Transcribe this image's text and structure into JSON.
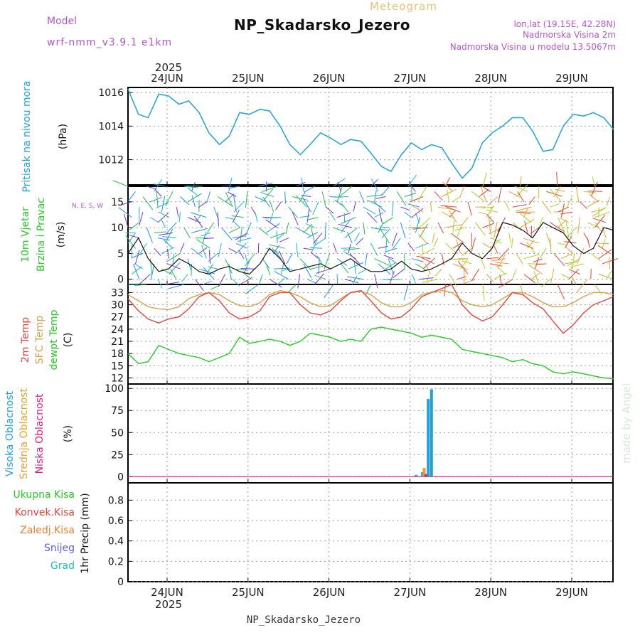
{
  "header": {
    "title": "NP_Skadarsko_Jezero",
    "subtitle": "Meteogram",
    "model_label": "Model",
    "model_name": "wrf-nmm_v3.9.1 e1km",
    "lonlat": "lon,lat (19.15E, 42.28N)",
    "elevation": "Nadmorska Visina 2m",
    "model_elevation": "Nadmorska Visina u modelu 13.5067m",
    "footer": "NP_Skadarsko_Jezero",
    "watermark": "made by Angel",
    "year": "2025"
  },
  "colors": {
    "pressure": "#1fa0e0",
    "temp2m": "#e8443a",
    "sfc_temp": "#d4a24a",
    "dewpoint": "#22cc22",
    "high_cloud": "#1fa0e0",
    "mid_cloud": "#e8a030",
    "low_cloud": "#e0207a",
    "title_purple": "#b455d6",
    "meteogram_orange": "#e8c070"
  },
  "chart_data": [
    {
      "type": "line",
      "panel": "pressure",
      "ylabel_lines": [
        "Pritisak na nivou mora",
        "(hPa)"
      ],
      "yticks": [
        "1016",
        "1014",
        "1012"
      ],
      "ylim": [
        1010.5,
        1016.3
      ],
      "x_day_ticks": [
        "24JUN",
        "25JUN",
        "26JUN",
        "27JUN",
        "28JUN",
        "29JUN"
      ],
      "series": [
        {
          "x": [
            0,
            0.13,
            0.25,
            0.38,
            0.5,
            0.63,
            0.75,
            0.88,
            1.0,
            1.13,
            1.25,
            1.38,
            1.5,
            1.63,
            1.75,
            1.88,
            2.0,
            2.13,
            2.25,
            2.38,
            2.5,
            2.63,
            2.75,
            2.88,
            3.0,
            3.13,
            3.25,
            3.38,
            3.5,
            3.63,
            3.75,
            3.88,
            4.0,
            4.13,
            4.25,
            4.38,
            4.5,
            4.63,
            4.75,
            4.88,
            5.0,
            5.13,
            5.25,
            5.38,
            5.5,
            5.63,
            5.75,
            5.88,
            6.0
          ],
          "y": [
            1016.2,
            1014.7,
            1014.5,
            1015.9,
            1015.8,
            1015.3,
            1015.5,
            1014.8,
            1013.6,
            1012.9,
            1013.4,
            1014.8,
            1014.7,
            1015.0,
            1014.9,
            1014.0,
            1012.9,
            1012.3,
            1012.9,
            1013.6,
            1013.3,
            1012.9,
            1013.2,
            1013.1,
            1012.4,
            1011.6,
            1011.3,
            1012.3,
            1013.0,
            1012.6,
            1012.9,
            1012.7,
            1011.8,
            1010.9,
            1011.5,
            1013.0,
            1013.6,
            1014.0,
            1014.5,
            1014.5,
            1013.7,
            1012.5,
            1012.6,
            1014.0,
            1014.7,
            1014.6,
            1014.8,
            1014.5,
            1013.8
          ]
        }
      ]
    },
    {
      "type": "line",
      "panel": "wind",
      "ylabel_lines": [
        "10m Vjetar",
        "Brzina i Pravac",
        "(m/s)"
      ],
      "yticks": [
        "15",
        "10",
        "5",
        "0"
      ],
      "ylim": [
        -1,
        18
      ],
      "compass": "N, E, S, W",
      "series": [
        {
          "name": "speed",
          "x": [
            0,
            0.13,
            0.25,
            0.38,
            0.5,
            0.63,
            0.75,
            0.88,
            1.0,
            1.13,
            1.25,
            1.38,
            1.5,
            1.63,
            1.75,
            1.88,
            2.0,
            2.13,
            2.25,
            2.38,
            2.5,
            2.63,
            2.75,
            2.88,
            3.0,
            3.13,
            3.25,
            3.38,
            3.5,
            3.63,
            3.75,
            3.88,
            4.0,
            4.13,
            4.25,
            4.38,
            4.5,
            4.63,
            4.75,
            4.88,
            5.0,
            5.13,
            5.25,
            5.38,
            5.5,
            5.63,
            5.75,
            5.88,
            6.0
          ],
          "y": [
            5,
            8,
            4,
            1.5,
            2,
            4,
            3,
            1.5,
            1,
            2,
            2.5,
            1.5,
            1,
            3,
            6,
            4,
            1.5,
            2,
            2.5,
            3,
            2,
            3,
            4,
            2.5,
            1.5,
            1.5,
            2,
            3.5,
            2,
            1.5,
            2,
            3,
            4,
            7,
            5,
            4,
            6,
            11,
            10.5,
            9.5,
            8,
            11,
            10,
            9,
            6.5,
            5,
            6,
            10,
            9.5
          ]
        }
      ]
    },
    {
      "type": "line",
      "panel": "temperature",
      "ylabel_lines": [
        "2m Temp",
        "SFC Temp",
        "dewpt Temp",
        "(C)"
      ],
      "yticks": [
        "33",
        "30",
        "27",
        "24",
        "21",
        "18",
        "15",
        "12"
      ],
      "ylim": [
        10.5,
        35
      ],
      "series": [
        {
          "name": "2m Temp",
          "x": [
            0,
            0.13,
            0.25,
            0.38,
            0.5,
            0.63,
            0.75,
            0.88,
            1.0,
            1.13,
            1.25,
            1.38,
            1.5,
            1.63,
            1.75,
            1.88,
            2.0,
            2.13,
            2.25,
            2.38,
            2.5,
            2.63,
            2.75,
            2.88,
            3.0,
            3.13,
            3.25,
            3.38,
            3.5,
            3.63,
            3.75,
            3.88,
            4.0,
            4.13,
            4.25,
            4.38,
            4.5,
            4.63,
            4.75,
            4.88,
            5.0,
            5.13,
            5.25,
            5.38,
            5.5,
            5.63,
            5.75,
            5.88,
            6.0
          ],
          "y": [
            31.5,
            28.5,
            26.5,
            25.5,
            26.5,
            27,
            29,
            32,
            33,
            31,
            28,
            26.5,
            27,
            28.5,
            32,
            33,
            33,
            30,
            28,
            27.5,
            28.5,
            31,
            33,
            33.5,
            31,
            28,
            26.5,
            27,
            29,
            32,
            33,
            34,
            35,
            30,
            27.5,
            26,
            27,
            30,
            33,
            32.5,
            30.5,
            29,
            26,
            23,
            25,
            28,
            30,
            31,
            32
          ]
        },
        {
          "name": "SFC Temp",
          "x": [
            0,
            0.13,
            0.25,
            0.38,
            0.5,
            0.63,
            0.75,
            0.88,
            1.0,
            1.13,
            1.25,
            1.38,
            1.5,
            1.63,
            1.75,
            1.88,
            2.0,
            2.13,
            2.25,
            2.38,
            2.5,
            2.63,
            2.75,
            2.88,
            3.0,
            3.13,
            3.25,
            3.38,
            3.5,
            3.63,
            3.75,
            3.88,
            4.0,
            4.13,
            4.25,
            4.38,
            4.5,
            4.63,
            4.75,
            4.88,
            5.0,
            5.13,
            5.25,
            5.38,
            5.5,
            5.63,
            5.75,
            5.88,
            6.0
          ],
          "y": [
            32.5,
            31,
            29.5,
            29,
            28.8,
            29.5,
            31.5,
            32.5,
            33,
            32.5,
            31,
            29.8,
            29.5,
            30.5,
            32.5,
            33.5,
            33,
            32,
            30.5,
            29.5,
            29.8,
            31.5,
            33,
            33.3,
            32.5,
            30.5,
            29.5,
            29.5,
            30.5,
            32.5,
            33,
            33.5,
            33,
            31,
            30,
            29.5,
            30,
            31.5,
            33,
            33,
            32,
            30.5,
            29.5,
            29.5,
            30.5,
            32,
            33,
            33,
            32.5
          ]
        },
        {
          "name": "dewpt Temp",
          "x": [
            0,
            0.13,
            0.25,
            0.38,
            0.5,
            0.63,
            0.75,
            0.88,
            1.0,
            1.13,
            1.25,
            1.38,
            1.5,
            1.63,
            1.75,
            1.88,
            2.0,
            2.13,
            2.25,
            2.38,
            2.5,
            2.63,
            2.75,
            2.88,
            3.0,
            3.13,
            3.25,
            3.38,
            3.5,
            3.63,
            3.75,
            3.88,
            4.0,
            4.13,
            4.25,
            4.38,
            4.5,
            4.63,
            4.75,
            4.88,
            5.0,
            5.13,
            5.25,
            5.38,
            5.5,
            5.63,
            5.75,
            5.88,
            6.0
          ],
          "y": [
            18,
            15.5,
            16,
            20,
            19,
            18,
            17.5,
            17,
            16,
            17,
            18,
            22,
            20.5,
            21,
            21.5,
            21,
            20,
            21,
            23,
            22.5,
            22,
            21,
            21.5,
            21,
            24,
            24.5,
            24,
            23.5,
            23,
            22,
            22.5,
            22,
            21.5,
            19,
            18.5,
            18,
            17.5,
            17,
            16,
            16.5,
            15.5,
            15,
            13.5,
            13,
            13.5,
            13,
            12.5,
            12,
            11.8
          ]
        }
      ]
    },
    {
      "type": "bar",
      "panel": "clouds",
      "ylabel_lines": [
        "Visoka Oblacnost",
        "Srednja Oblacnost",
        "Niska Oblacnost",
        "(%)"
      ],
      "yticks": [
        "100",
        "75",
        "50",
        "25",
        "0"
      ],
      "ylim": [
        -7,
        105
      ],
      "series": [
        {
          "name": "Visoka Oblacnost",
          "x": [
            3.56,
            3.64,
            3.71,
            3.75
          ],
          "values": [
            2,
            5,
            88,
            99
          ]
        },
        {
          "name": "Srednja Oblacnost",
          "x": [
            3.66
          ],
          "values": [
            10
          ]
        },
        {
          "name": "Niska Oblacnost",
          "x": [
            3.68
          ],
          "values": [
            3
          ]
        }
      ]
    },
    {
      "type": "bar",
      "panel": "precipitation",
      "ylabel_lines": [
        "1hr Precip (mm)"
      ],
      "legend": [
        "Ukupna Kisa",
        "Konvek.Kisa",
        "Zaledj.Kisa",
        "Snijeg",
        "Grad"
      ],
      "yticks": [
        "0.8",
        "0.6",
        "0.4",
        "0.2",
        "0"
      ],
      "ylim": [
        0,
        0.97
      ],
      "series": [
        {
          "name": "Ukupna Kisa",
          "values": []
        }
      ]
    }
  ]
}
